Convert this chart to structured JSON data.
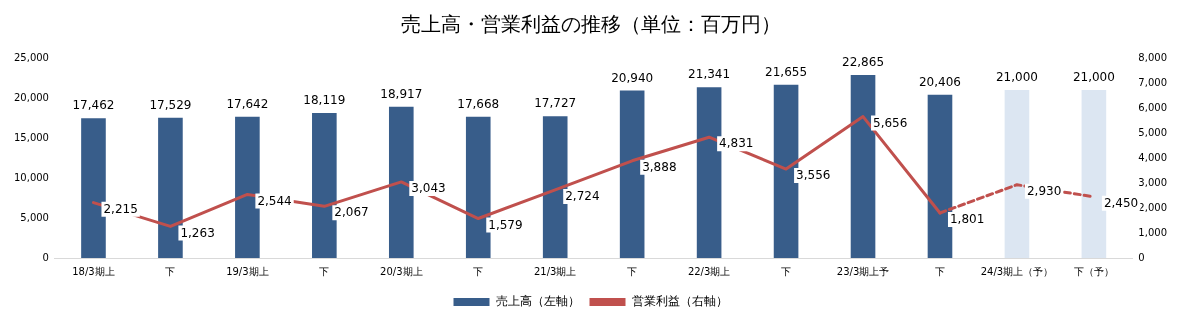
{
  "chart_data": {
    "type": "bar",
    "title": "売上高・営業利益の推移（単位：百万円）",
    "categories": [
      "18/3期上",
      "下",
      "19/3期上",
      "下",
      "20/3期上",
      "下",
      "21/3期上",
      "下",
      "22/3期上",
      "下",
      "23/3期上予",
      "下",
      "24/3期上（予）",
      "下（予）"
    ],
    "series": [
      {
        "name": "売上高（左軸）",
        "color": "#385d8a",
        "colors": [
          "#385d8a",
          "#385d8a",
          "#385d8a",
          "#385d8a",
          "#385d8a",
          "#385d8a",
          "#385d8a",
          "#385d8a",
          "#385d8a",
          "#385d8a",
          "#385d8a",
          "#385d8a",
          "#dce6f2",
          "#dce6f2"
        ],
        "values": [
          17462,
          17529,
          17642,
          18119,
          18917,
          17668,
          17727,
          20940,
          21341,
          21655,
          22865,
          20406,
          21000,
          21000
        ],
        "value_labels": [
          "17,462",
          "17,529",
          "17,642",
          "18,119",
          "18,917",
          "17,668",
          "17,727",
          "20,940",
          "21,341",
          "21,655",
          "22,865",
          "20,406",
          "21,000",
          "21,000"
        ]
      },
      {
        "name": "営業利益（右軸）",
        "type": "line",
        "axis": "y2",
        "color": "#c0504d",
        "line_style": "solid",
        "values": [
          2215,
          1263,
          2544,
          2067,
          3043,
          1579,
          2724,
          3888,
          4831,
          3556,
          5656,
          1801,
          null,
          null
        ],
        "value_labels": [
          "2,215",
          "1,263",
          "2,544",
          "2,067",
          "3,043",
          "1,579",
          "2,724",
          "3,888",
          "4,831",
          "3,556",
          "5,656",
          "1,801",
          null,
          null
        ]
      },
      {
        "type": "line",
        "axis": "y2",
        "color": "#c0504d",
        "line_style": "dashed",
        "values": [
          null,
          null,
          null,
          null,
          null,
          null,
          null,
          null,
          null,
          null,
          null,
          1801,
          2930,
          2450
        ],
        "value_labels": [
          null,
          null,
          null,
          null,
          null,
          null,
          null,
          null,
          null,
          null,
          null,
          null,
          "2,930",
          "2,450"
        ]
      }
    ],
    "ylim": [
      0,
      25000
    ],
    "yticks": [
      0,
      {
        "value": 5000,
        "label": "5,000"
      },
      {
        "value": 10000,
        "label": "10,000"
      },
      {
        "value": 15000,
        "label": "15,000"
      },
      {
        "value": 20000,
        "label": "20,000"
      },
      {
        "value": 25000,
        "label": "25,000"
      }
    ],
    "y2lim": [
      0,
      8000
    ],
    "y2ticks": [
      0,
      {
        "value": 1000,
        "label": "1,000"
      },
      {
        "value": 2000,
        "label": "2,000"
      },
      {
        "value": 3000,
        "label": "3,000"
      },
      {
        "value": 4000,
        "label": "4,000"
      },
      {
        "value": 5000,
        "label": "5,000"
      },
      {
        "value": 6000,
        "label": "6,000"
      },
      {
        "value": 7000,
        "label": "7,000"
      },
      {
        "value": 8000,
        "label": "8,000"
      }
    ],
    "grid": false,
    "legend": "bottom",
    "marker": "none"
  }
}
